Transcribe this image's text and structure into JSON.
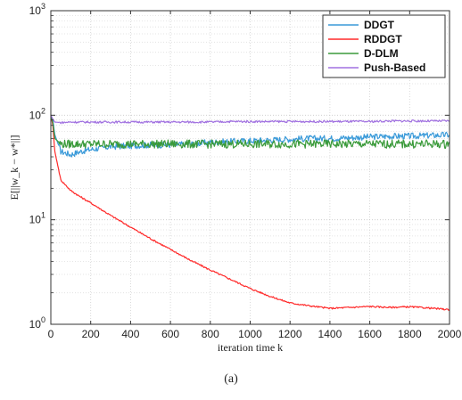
{
  "chart_data": {
    "type": "line",
    "xlabel": "iteration time k",
    "ylabel": "E[||w_k − w*||]",
    "xlim": [
      0,
      2000
    ],
    "ylim": [
      1,
      1000
    ],
    "yscale": "log",
    "grid": true,
    "legend_position": "top-right",
    "x_ticks": [
      0,
      200,
      400,
      600,
      800,
      1000,
      1200,
      1400,
      1600,
      1800,
      2000
    ],
    "y_ticks": [
      1,
      10,
      100,
      1000
    ],
    "y_tick_labels": [
      "10^0",
      "10^1",
      "10^2",
      "10^3"
    ],
    "x": [
      0,
      10,
      20,
      50,
      100,
      150,
      200,
      300,
      400,
      500,
      600,
      700,
      800,
      900,
      1000,
      1100,
      1200,
      1300,
      1400,
      1500,
      1600,
      1700,
      1800,
      1900,
      2000
    ],
    "series": [
      {
        "name": "DDGT",
        "color": "#3a9ad9",
        "values": [
          100,
          90,
          65,
          45,
          42,
          45,
          47,
          50,
          51,
          52,
          52,
          53,
          55,
          56,
          57,
          58,
          59,
          60,
          60,
          61,
          62,
          63,
          63,
          64,
          65
        ]
      },
      {
        "name": "RDDGT",
        "color": "#ff2a2a",
        "values": [
          100,
          80,
          45,
          24,
          19,
          16.5,
          14.5,
          11,
          8.5,
          6.6,
          5.2,
          4.1,
          3.3,
          2.7,
          2.2,
          1.85,
          1.6,
          1.5,
          1.42,
          1.45,
          1.48,
          1.45,
          1.47,
          1.43,
          1.38
        ]
      },
      {
        "name": "D-DLM",
        "color": "#3a9a3a",
        "values": [
          100,
          85,
          60,
          53,
          53,
          53,
          53,
          53,
          53,
          53,
          53,
          53,
          53,
          53,
          53,
          53,
          53,
          53,
          53,
          53,
          53,
          53,
          53,
          53,
          53
        ]
      },
      {
        "name": "Push-Based",
        "color": "#a070e0",
        "values": [
          100,
          92,
          86,
          85,
          86,
          86,
          86,
          86,
          86,
          86,
          86,
          86,
          86,
          87,
          87,
          87,
          87,
          87,
          87,
          87,
          87,
          88,
          88,
          88,
          88
        ]
      }
    ]
  },
  "caption": "(a)"
}
